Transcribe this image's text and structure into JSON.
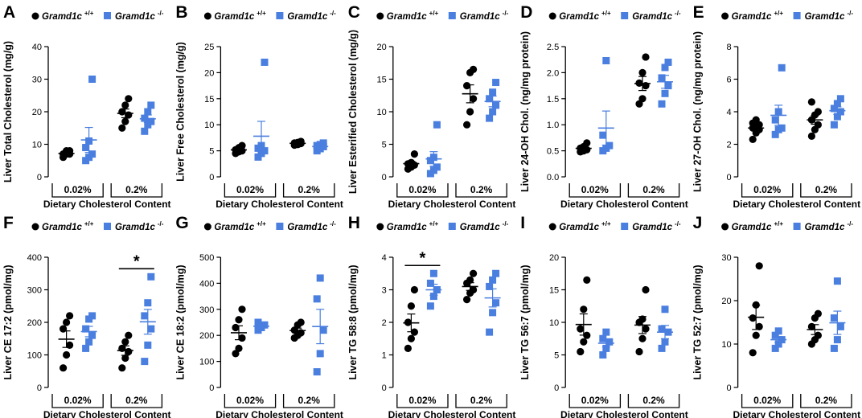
{
  "colors": {
    "wt": "#000000",
    "ko": "#4a7fe0"
  },
  "legend": {
    "wt_label": "Gramd1c",
    "wt_sup": "+/+",
    "ko_label": "Gramd1c",
    "ko_sup": "-/-"
  },
  "group_labels": [
    "0.02%",
    "0.2%"
  ],
  "x_title": "Dietary Cholesterol Content",
  "chart_data": [
    {
      "letter": "A",
      "type": "scatter",
      "ylabel": "Liver Total Cholesterol (mg/g)",
      "ylim": [
        0,
        40
      ],
      "ticks": [
        0,
        10,
        20,
        30,
        40
      ],
      "groups": [
        {
          "wt": [
            6,
            7,
            7,
            7,
            8,
            8
          ],
          "ko": [
            5,
            6,
            7,
            9,
            11,
            30
          ]
        },
        {
          "wt": [
            15,
            17,
            19,
            20,
            22,
            24
          ],
          "ko": [
            14,
            16,
            17,
            18,
            20,
            22
          ]
        }
      ]
    },
    {
      "letter": "B",
      "type": "scatter",
      "ylabel": "Liver Free Cholesterol (mg/g)",
      "ylim": [
        0,
        25
      ],
      "ticks": [
        0,
        5,
        10,
        15,
        20,
        25
      ],
      "groups": [
        {
          "wt": [
            4.5,
            4.8,
            5,
            5.2,
            5.6,
            6
          ],
          "ko": [
            3.8,
            4.5,
            5,
            5.5,
            6,
            22
          ]
        },
        {
          "wt": [
            6.1,
            6.2,
            6.4,
            6.5,
            6.6,
            6.8
          ],
          "ko": [
            5,
            5.4,
            5.8,
            6,
            6.2,
            6.5
          ]
        }
      ]
    },
    {
      "letter": "C",
      "type": "scatter",
      "ylabel": "Liver Esterified Cholesterol (mg/g)",
      "ylim": [
        0,
        20
      ],
      "ticks": [
        0,
        5,
        10,
        15,
        20
      ],
      "groups": [
        {
          "wt": [
            1.2,
            1.5,
            1.8,
            2,
            2.2,
            3.5
          ],
          "ko": [
            0.5,
            1,
            1.5,
            2.5,
            3,
            8
          ]
        },
        {
          "wt": [
            8,
            10,
            12,
            14,
            16,
            16.5
          ],
          "ko": [
            9,
            10,
            11,
            12,
            13,
            14.5
          ]
        }
      ]
    },
    {
      "letter": "D",
      "type": "scatter",
      "ylabel": "Liver 24-OH Chol. (ng/mg protein)",
      "ylim": [
        0,
        2.5
      ],
      "ticks": [
        0.0,
        0.5,
        1.0,
        1.5,
        2.0,
        2.5
      ],
      "groups": [
        {
          "wt": [
            0.48,
            0.5,
            0.52,
            0.55,
            0.58,
            0.65
          ],
          "ko": [
            0.5,
            0.55,
            0.6,
            0.8,
            2.23
          ]
        },
        {
          "wt": [
            1.4,
            1.5,
            1.75,
            1.8,
            2,
            2.3
          ],
          "ko": [
            1.4,
            1.6,
            1.75,
            1.9,
            2.1,
            2.2
          ]
        }
      ]
    },
    {
      "letter": "E",
      "type": "scatter",
      "ylabel": "Liver 27-OH Chol. (ng/mg protein)",
      "ylim": [
        0,
        8
      ],
      "ticks": [
        0,
        2,
        4,
        6,
        8
      ],
      "groups": [
        {
          "wt": [
            2.3,
            2.7,
            2.9,
            3,
            3.1,
            3.2,
            3.3,
            3.5
          ],
          "ko": [
            2.6,
            2.9,
            3,
            3.5,
            4,
            6.7
          ]
        },
        {
          "wt": [
            2.5,
            2.9,
            3.2,
            3.5,
            3.8,
            4,
            4.6
          ],
          "ko": [
            3.2,
            3.7,
            4,
            4.2,
            4.5,
            4.8
          ]
        }
      ]
    },
    {
      "letter": "F",
      "type": "scatter",
      "ylabel": "Liver CE 17:2 (pmol/mg)",
      "ylim": [
        0,
        400
      ],
      "ticks": [
        0,
        100,
        200,
        300,
        400
      ],
      "groups": [
        {
          "wt": [
            60,
            100,
            130,
            180,
            200,
            220
          ],
          "ko": [
            120,
            140,
            160,
            180,
            210,
            220
          ]
        },
        {
          "wt": [
            60,
            90,
            110,
            120,
            140,
            160
          ],
          "ko": [
            80,
            130,
            180,
            220,
            260,
            340
          ]
        }
      ],
      "annotation": {
        "text": "*",
        "group": 1
      }
    },
    {
      "letter": "G",
      "type": "scatter",
      "ylabel": "Liver CE 18:2 (pmol/mg)",
      "ylim": [
        0,
        500
      ],
      "ticks": [
        0,
        100,
        200,
        300,
        400,
        500
      ],
      "groups": [
        {
          "wt": [
            130,
            150,
            190,
            230,
            260,
            300
          ],
          "ko": [
            220,
            230,
            240,
            250
          ]
        },
        {
          "wt": [
            190,
            200,
            210,
            220,
            240,
            250
          ],
          "ko": [
            60,
            130,
            220,
            340,
            420
          ]
        }
      ]
    },
    {
      "letter": "H",
      "type": "scatter",
      "ylabel": "Liver TG 58:8 (pmol/mg)",
      "ylim": [
        0,
        4
      ],
      "ticks": [
        0,
        1,
        2,
        3,
        4
      ],
      "groups": [
        {
          "wt": [
            1.2,
            1.5,
            1.7,
            2,
            2.5,
            3
          ],
          "ko": [
            2.5,
            2.8,
            3,
            3.2,
            3.5
          ]
        },
        {
          "wt": [
            2.7,
            2.9,
            3,
            3.2,
            3.3,
            3.5
          ],
          "ko": [
            1.7,
            2.3,
            2.6,
            3.1,
            3.3,
            3.5
          ]
        }
      ],
      "annotation": {
        "text": "*",
        "group": 0
      }
    },
    {
      "letter": "I",
      "type": "scatter",
      "ylabel": "Liver TG 56:7 (pmol/mg)",
      "ylim": [
        0,
        20
      ],
      "ticks": [
        0,
        5,
        10,
        15,
        20
      ],
      "groups": [
        {
          "wt": [
            5.5,
            7,
            8,
            9,
            12,
            16.5
          ],
          "ko": [
            5,
            6,
            7,
            7.5,
            8.5
          ]
        },
        {
          "wt": [
            5.5,
            7.5,
            9,
            10,
            10.5,
            15
          ],
          "ko": [
            6,
            7,
            8.5,
            9,
            12
          ]
        }
      ]
    },
    {
      "letter": "J",
      "type": "scatter",
      "ylabel": "Liver TG 52:7 (pmol/mg)",
      "ylim": [
        0,
        30
      ],
      "ticks": [
        0,
        10,
        20,
        30
      ],
      "groups": [
        {
          "wt": [
            8,
            12,
            14,
            16,
            19,
            28
          ],
          "ko": [
            9,
            10,
            11,
            12,
            13
          ]
        },
        {
          "wt": [
            10,
            11,
            12,
            14,
            16,
            17
          ],
          "ko": [
            9,
            11,
            14,
            16,
            24.5
          ]
        }
      ]
    }
  ]
}
